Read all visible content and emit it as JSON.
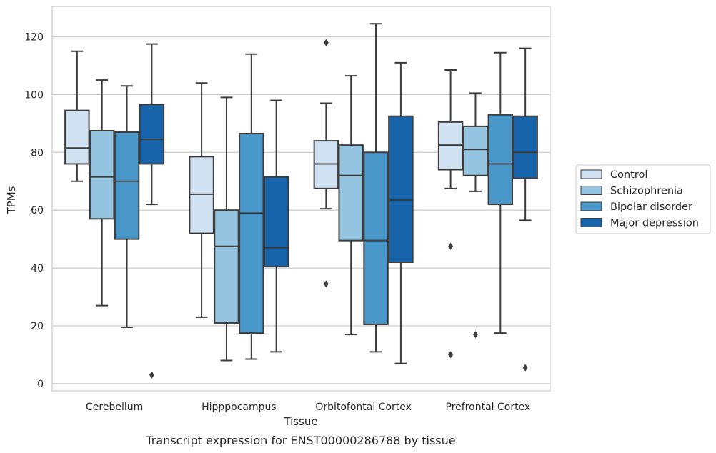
{
  "chart_data": {
    "type": "box",
    "caption": "Transcript expression for ENST00000286788 by tissue",
    "xlabel": "Tissue",
    "ylabel": "TPMs",
    "ylim": [
      -2.5,
      130.5
    ],
    "yticks": [
      0,
      20,
      40,
      60,
      80,
      100,
      120
    ],
    "ytick_labels": [
      "0",
      "20",
      "40",
      "60",
      "80",
      "100",
      "120"
    ],
    "grid": "horizontal",
    "legend_position": "right",
    "categories": [
      "Cerebellum",
      "Hipppocampus",
      "Orbitofontal Cortex",
      "Prefrontal Cortex"
    ],
    "series": [
      {
        "name": "Control",
        "color": "#d0e1f2",
        "boxes": [
          {
            "whislo": 70,
            "q1": 76,
            "median": 81.5,
            "q3": 94.5,
            "whishi": 115,
            "fliers": []
          },
          {
            "whislo": 23,
            "q1": 52,
            "median": 65.5,
            "q3": 78.5,
            "whishi": 104,
            "fliers": []
          },
          {
            "whislo": 60.5,
            "q1": 67.5,
            "median": 76,
            "q3": 84,
            "whishi": 97,
            "fliers": [
              118,
              34.5
            ]
          },
          {
            "whislo": 67.5,
            "q1": 74,
            "median": 82.5,
            "q3": 90.5,
            "whishi": 108.5,
            "fliers": [
              47.5,
              10
            ]
          }
        ]
      },
      {
        "name": "Schizophrenia",
        "color": "#94c4df",
        "boxes": [
          {
            "whislo": 27,
            "q1": 57,
            "median": 71.5,
            "q3": 87.5,
            "whishi": 105,
            "fliers": []
          },
          {
            "whislo": 8,
            "q1": 21,
            "median": 47.5,
            "q3": 60,
            "whishi": 99,
            "fliers": []
          },
          {
            "whislo": 17,
            "q1": 49.5,
            "median": 72,
            "q3": 82.5,
            "whishi": 106.5,
            "fliers": []
          },
          {
            "whislo": 66.5,
            "q1": 72,
            "median": 81,
            "q3": 89,
            "whishi": 100.5,
            "fliers": [
              17
            ]
          }
        ]
      },
      {
        "name": "Bipolar disorder",
        "color": "#4a98c9",
        "boxes": [
          {
            "whislo": 19.5,
            "q1": 50,
            "median": 70,
            "q3": 87,
            "whishi": 103,
            "fliers": []
          },
          {
            "whislo": 8.5,
            "q1": 17.5,
            "median": 59,
            "q3": 86.5,
            "whishi": 114,
            "fliers": []
          },
          {
            "whislo": 11,
            "q1": 20.5,
            "median": 49.5,
            "q3": 80,
            "whishi": 124.5,
            "fliers": []
          },
          {
            "whislo": 17.5,
            "q1": 62,
            "median": 76,
            "q3": 93,
            "whishi": 114.5,
            "fliers": []
          }
        ]
      },
      {
        "name": "Major depression",
        "color": "#1764ab",
        "boxes": [
          {
            "whislo": 62,
            "q1": 76,
            "median": 84.5,
            "q3": 96.5,
            "whishi": 117.5,
            "fliers": [
              3
            ]
          },
          {
            "whislo": 11,
            "q1": 40.5,
            "median": 47,
            "q3": 71.5,
            "whishi": 98,
            "fliers": []
          },
          {
            "whislo": 7,
            "q1": 42,
            "median": 63.5,
            "q3": 92.5,
            "whishi": 111,
            "fliers": []
          },
          {
            "whislo": 56.5,
            "q1": 71,
            "median": 80,
            "q3": 92.5,
            "whishi": 116,
            "fliers": [
              5.5
            ]
          }
        ]
      }
    ]
  }
}
